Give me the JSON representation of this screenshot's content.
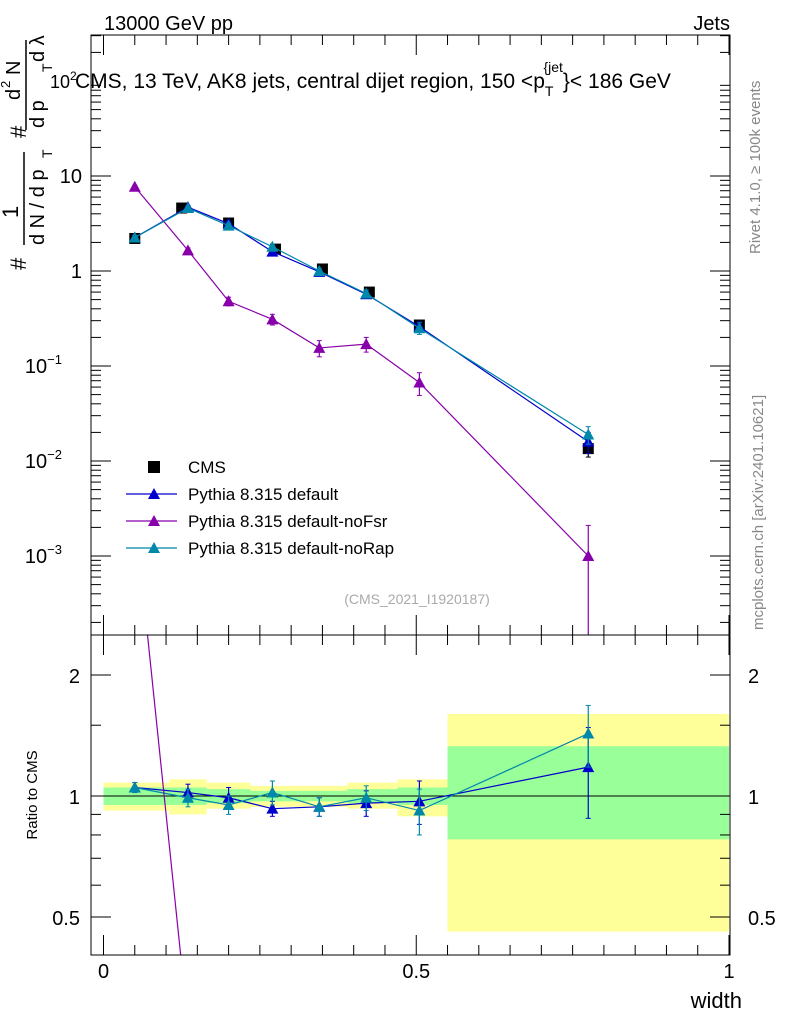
{
  "header": {
    "left": "13000 GeV pp",
    "right": "Jets"
  },
  "side_text": {
    "rivet": "Rivet 4.1.0, ≥ 100k events",
    "mcplots": "mcplots.cern.ch [arXiv:2401.10621]"
  },
  "chart_data": [
    {
      "type": "scatter",
      "panel": "main",
      "title": "CMS, 13 TeV, AK8 jets, central dijet region, 150 <p_T^{jet}< 186 GeV",
      "title_parts": {
        "main": "CMS, 13 TeV, AK8 jets, central dijet region, 150 <p",
        "sub": "T",
        "sup": "{jet",
        "rest": "}< 186 GeV"
      },
      "ylabel_parts": {
        "num_prefix": "#",
        "den_prefix": "#",
        "one": "1",
        "dN": "d N / d p",
        "T": "T",
        "d2N": "d",
        "sq": "2",
        "N": "N",
        "dp": "d p",
        "dl": "d λ"
      },
      "ylabel_offset": "10",
      "ylabel_offset_exp": "2",
      "yscale": "log",
      "xlim": [
        0,
        1
      ],
      "ylim": [
        0.00015,
        300
      ],
      "y_ticks": [
        {
          "v": 10,
          "label": "10"
        },
        {
          "v": 1,
          "label": "1"
        },
        {
          "v": 0.1,
          "base": "10",
          "exp": "−1"
        },
        {
          "v": 0.01,
          "base": "10",
          "exp": "−2"
        },
        {
          "v": 0.001,
          "base": "10",
          "exp": "−3"
        }
      ],
      "watermark": "(CMS_2021_I1920187)",
      "legend_position": "bottom-left",
      "series": [
        {
          "name": "CMS",
          "marker": "square",
          "color": "#000000",
          "x": [
            0.05,
            0.125,
            0.2,
            0.275,
            0.35,
            0.425,
            0.505,
            0.775
          ],
          "y": [
            2.2,
            4.6,
            3.2,
            1.7,
            1.05,
            0.6,
            0.27,
            0.0135
          ],
          "xerr": [
            0.05,
            0.05,
            0.025,
            0.025,
            0.025,
            0.025,
            0.025,
            0.225
          ],
          "yerr": [
            0.15,
            0.25,
            0.2,
            0.12,
            0.08,
            0.05,
            0.03,
            0.0025
          ]
        },
        {
          "name": "Pythia 8.315 default",
          "marker": "triangle",
          "color": "#0000cc",
          "x": [
            0.05,
            0.135,
            0.2,
            0.27,
            0.345,
            0.42,
            0.505,
            0.775
          ],
          "y": [
            2.25,
            4.7,
            3.15,
            1.6,
            0.98,
            0.57,
            0.26,
            0.016
          ],
          "yerr": [
            0.12,
            0.2,
            0.15,
            0.1,
            0.07,
            0.05,
            0.03,
            0.004
          ]
        },
        {
          "name": "Pythia 8.315 default-noFsr",
          "marker": "triangle",
          "color": "#8800aa",
          "x": [
            0.05,
            0.135,
            0.2,
            0.27,
            0.345,
            0.42,
            0.505,
            0.775
          ],
          "y": [
            7.7,
            1.65,
            0.48,
            0.31,
            0.155,
            0.17,
            0.067,
            0.001
          ],
          "yerr": [
            0.3,
            0.1,
            0.05,
            0.04,
            0.03,
            0.03,
            0.018,
            0.0011
          ]
        },
        {
          "name": "Pythia 8.315 default-noRap",
          "marker": "triangle",
          "color": "#0088aa",
          "x": [
            0.05,
            0.135,
            0.2,
            0.27,
            0.345,
            0.42,
            0.505,
            0.775
          ],
          "y": [
            2.25,
            4.6,
            3.0,
            1.8,
            1.0,
            0.58,
            0.25,
            0.019
          ],
          "yerr": [
            0.12,
            0.2,
            0.15,
            0.12,
            0.07,
            0.05,
            0.035,
            0.004
          ]
        }
      ]
    },
    {
      "type": "line",
      "panel": "ratio",
      "ylabel": "Ratio to CMS",
      "xlabel": "width",
      "xlim": [
        0,
        1
      ],
      "ylim": [
        0.42,
        2.35
      ],
      "yscale": "log",
      "x_ticks": [
        {
          "v": 0,
          "label": "0"
        },
        {
          "v": 0.5,
          "label": "0.5"
        },
        {
          "v": 1,
          "label": "1"
        }
      ],
      "y_ticks": [
        {
          "v": 2,
          "label": "2"
        },
        {
          "v": 1,
          "label": "1"
        },
        {
          "v": 0.5,
          "label": "0.5"
        }
      ],
      "bands": [
        {
          "x0": 0.0,
          "x1": 0.105,
          "y_lo": 0.92,
          "y_hi": 1.08,
          "in_lo": 0.95,
          "in_hi": 1.05
        },
        {
          "x0": 0.105,
          "x1": 0.165,
          "y_lo": 0.9,
          "y_hi": 1.1,
          "in_lo": 0.95,
          "in_hi": 1.05
        },
        {
          "x0": 0.165,
          "x1": 0.235,
          "y_lo": 0.93,
          "y_hi": 1.08,
          "in_lo": 0.96,
          "in_hi": 1.04
        },
        {
          "x0": 0.235,
          "x1": 0.31,
          "y_lo": 0.94,
          "y_hi": 1.06,
          "in_lo": 0.97,
          "in_hi": 1.03
        },
        {
          "x0": 0.31,
          "x1": 0.39,
          "y_lo": 0.94,
          "y_hi": 1.06,
          "in_lo": 0.97,
          "in_hi": 1.03
        },
        {
          "x0": 0.39,
          "x1": 0.47,
          "y_lo": 0.93,
          "y_hi": 1.08,
          "in_lo": 0.96,
          "in_hi": 1.04
        },
        {
          "x0": 0.47,
          "x1": 0.55,
          "y_lo": 0.89,
          "y_hi": 1.1,
          "in_lo": 0.95,
          "in_hi": 1.05
        },
        {
          "x0": 0.55,
          "x1": 1.0,
          "y_lo": 0.46,
          "y_hi": 1.6,
          "in_lo": 0.78,
          "in_hi": 1.33
        }
      ],
      "band_colors": {
        "outer": "#ffff99",
        "inner": "#99ff99"
      },
      "series": [
        {
          "name": "Pythia 8.315 default",
          "color": "#0000cc",
          "x": [
            0.05,
            0.135,
            0.2,
            0.27,
            0.345,
            0.42,
            0.505,
            0.775
          ],
          "y": [
            1.05,
            1.02,
            0.99,
            0.93,
            0.94,
            0.96,
            0.97,
            1.18
          ],
          "yerr": [
            0.03,
            0.05,
            0.06,
            0.04,
            0.05,
            0.07,
            0.12,
            0.3
          ]
        },
        {
          "name": "Pythia 8.315 default-noRap",
          "color": "#0088aa",
          "x": [
            0.05,
            0.135,
            0.2,
            0.27,
            0.345,
            0.42,
            0.505,
            0.775
          ],
          "y": [
            1.05,
            0.99,
            0.95,
            1.02,
            0.94,
            0.99,
            0.92,
            1.43
          ],
          "yerr": [
            0.03,
            0.05,
            0.05,
            0.07,
            0.05,
            0.07,
            0.12,
            0.25
          ]
        },
        {
          "name": "Pythia 8.315 default-noFsr",
          "color": "#8800aa",
          "x": [
            0.06,
            0.125
          ],
          "y": [
            3.6,
            0.38
          ],
          "yerr": [
            0,
            0
          ]
        }
      ]
    }
  ]
}
